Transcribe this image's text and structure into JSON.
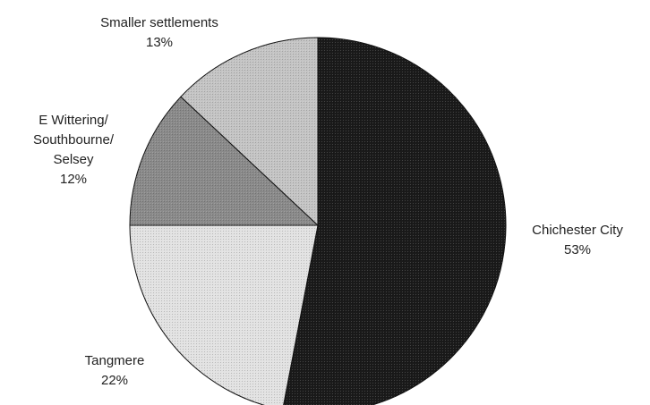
{
  "chart_data": {
    "type": "pie",
    "title": "",
    "slices": [
      {
        "label_lines": [
          "Chichester City"
        ],
        "value": 53,
        "value_label": "53%",
        "color": "#1a1a1a"
      },
      {
        "label_lines": [
          "Tangmere"
        ],
        "value": 22,
        "value_label": "22%",
        "color": "#e2e2e2"
      },
      {
        "label_lines": [
          "E Wittering/",
          "Southbourne/",
          "Selsey"
        ],
        "value": 12,
        "value_label": "12%",
        "color": "#8a8a8a"
      },
      {
        "label_lines": [
          "Smaller settlements"
        ],
        "value": 13,
        "value_label": "13%",
        "color": "#c4c4c4"
      }
    ],
    "legend": false
  }
}
